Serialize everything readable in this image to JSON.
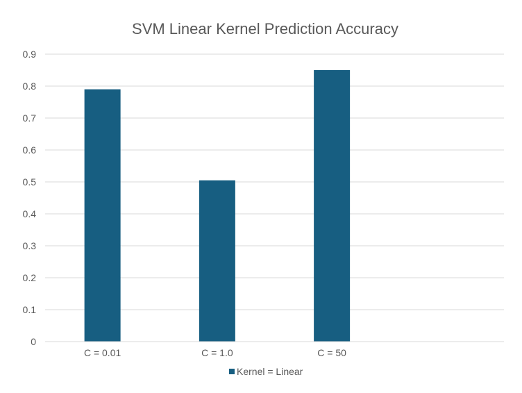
{
  "chart_data": {
    "type": "bar",
    "title": "SVM Linear Kernel Prediction Accuracy",
    "xlabel": "",
    "ylabel": "",
    "categories": [
      "C = 0.01",
      "C = 1.0",
      "C = 50"
    ],
    "series": [
      {
        "name": "Kernel = Linear",
        "values": [
          0.79,
          0.505,
          0.85
        ],
        "color": "#175E81"
      }
    ],
    "ylim": [
      0,
      0.9
    ],
    "yticks": [
      "0",
      "0.1",
      "0.2",
      "0.3",
      "0.4",
      "0.5",
      "0.6",
      "0.7",
      "0.8",
      "0.9"
    ],
    "grid": true,
    "legend_position": "bottom"
  },
  "colors": {
    "gridline": "#D9D9D9",
    "text": "#595959",
    "background": "#FFFFFF"
  }
}
